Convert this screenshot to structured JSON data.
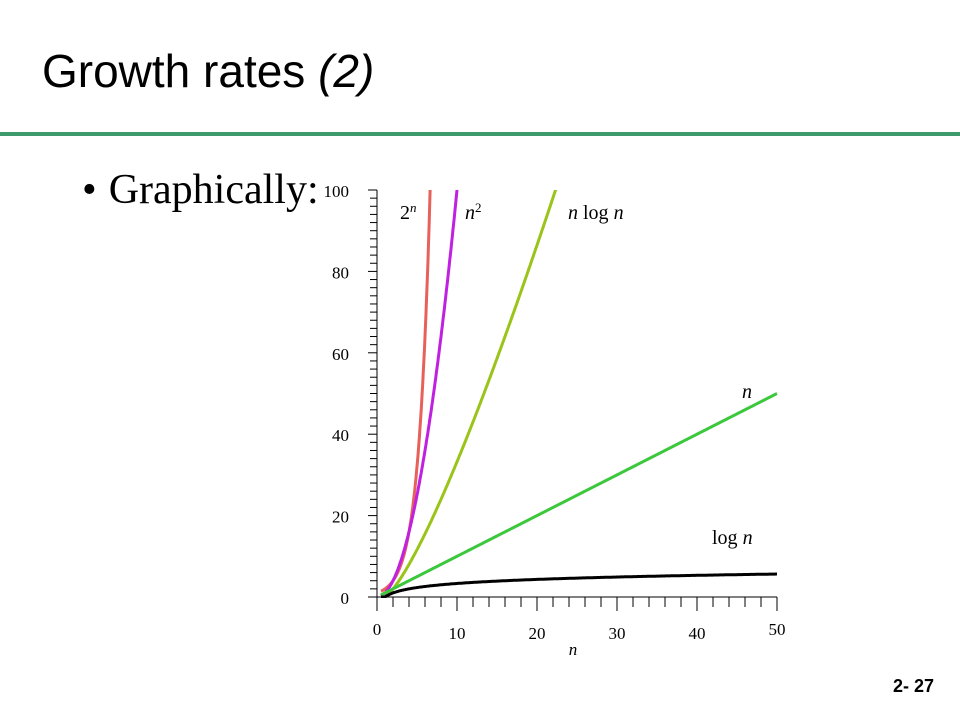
{
  "slide": {
    "title_main": "Growth rates",
    "title_paren": "(2)",
    "bullet_symbol": "•",
    "bullet_text": "Graphically:",
    "page_number": "2- 27"
  },
  "chart_data": {
    "type": "line",
    "xlim": [
      0,
      50
    ],
    "ylim": [
      0,
      100
    ],
    "xlabel": "n",
    "ylabel": "",
    "x_ticks": [
      0,
      10,
      20,
      30,
      40,
      50
    ],
    "y_ticks": [
      0,
      20,
      40,
      60,
      80,
      100
    ],
    "grid": false,
    "series": [
      {
        "name": "2^n",
        "label_base": "2",
        "label_sup": "n",
        "function": "2^n",
        "color": "#e8605a",
        "x": [
          1,
          2,
          3,
          4,
          5,
          6,
          6.64
        ],
        "y": [
          2,
          4,
          8,
          16,
          32,
          64,
          100
        ]
      },
      {
        "name": "n^2",
        "label_base": "n",
        "label_sup": "2",
        "function": "n^2",
        "color": "#c020e0",
        "x": [
          1,
          2,
          4,
          6,
          8,
          9,
          10
        ],
        "y": [
          1,
          4,
          16,
          36,
          64,
          81,
          100
        ]
      },
      {
        "name": "n log n",
        "label_text": "n log n",
        "function": "n log2 n",
        "color": "#9ac41a",
        "x": [
          2,
          4,
          8,
          10,
          12,
          15,
          18,
          20.4
        ],
        "y": [
          2,
          8,
          24,
          33.2,
          43,
          58.6,
          75,
          88.6
        ]
      },
      {
        "name": "n",
        "label_text": "n",
        "function": "n",
        "color": "#3cc83c",
        "x": [
          1,
          10,
          20,
          30,
          40,
          50
        ],
        "y": [
          1,
          10,
          20,
          30,
          40,
          50
        ]
      },
      {
        "name": "log n",
        "label_text": "log n",
        "function": "log2 n",
        "color": "#000000",
        "x": [
          1,
          2,
          4,
          8,
          16,
          32,
          50
        ],
        "y": [
          0,
          1,
          2,
          3,
          4,
          5,
          5.64
        ]
      }
    ]
  }
}
